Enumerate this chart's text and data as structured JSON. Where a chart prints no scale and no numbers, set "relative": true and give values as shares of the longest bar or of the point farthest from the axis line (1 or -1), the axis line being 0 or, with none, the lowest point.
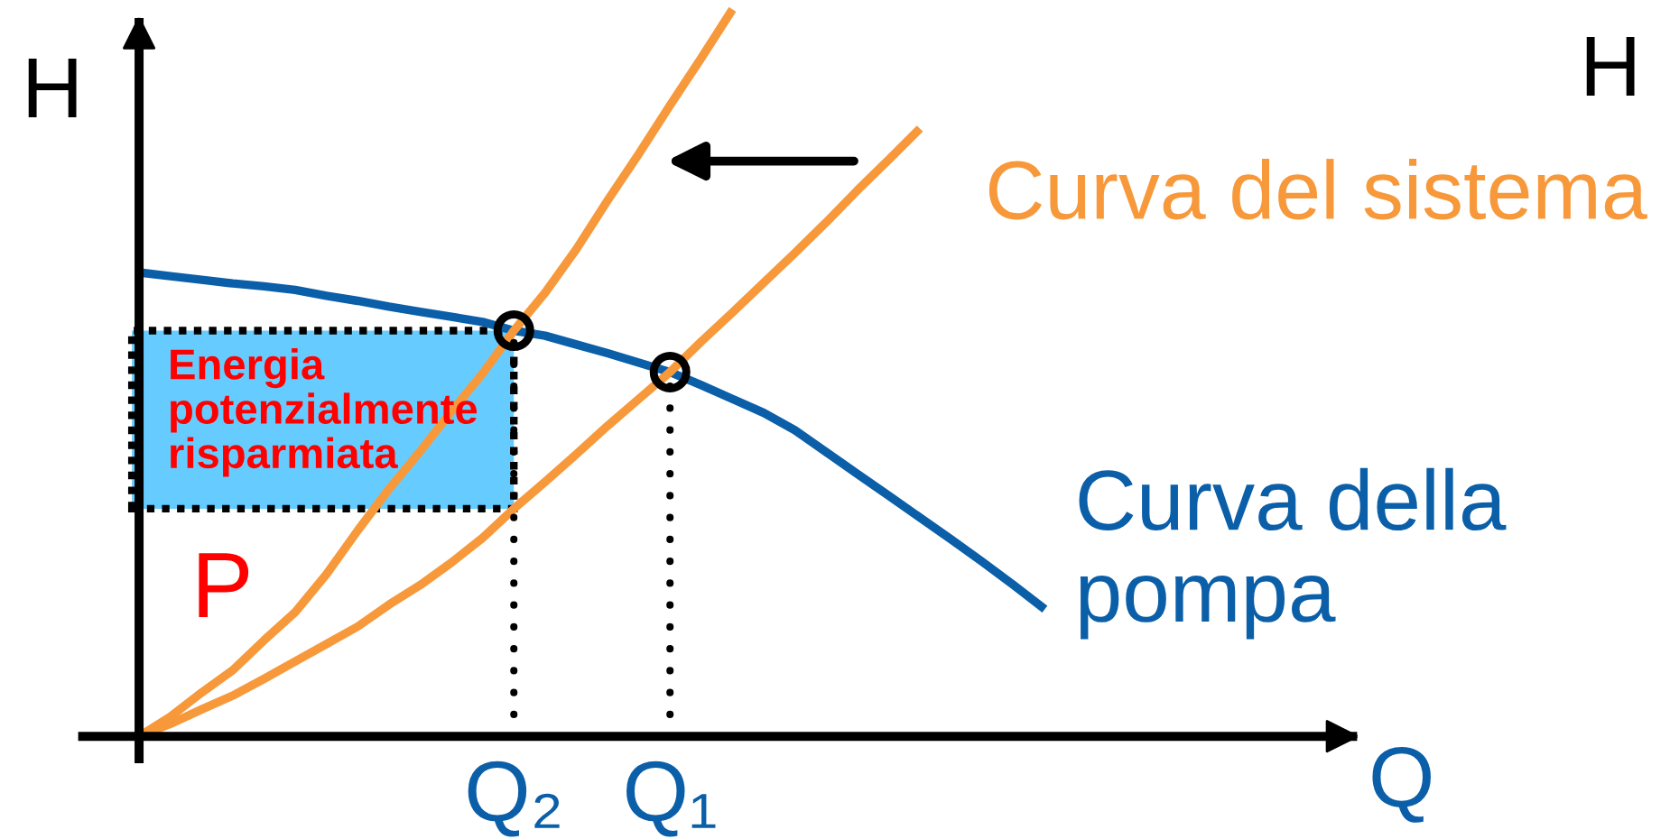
{
  "chart_data": {
    "type": "line",
    "relative": true,
    "tick_labels": "x",
    "xlabel": "Q",
    "ylabel": "H",
    "categories": [
      null,
      null,
      null,
      null,
      null,
      null,
      null,
      null,
      null,
      null,
      null,
      null,
      "Q₂",
      null,
      null,
      null,
      null,
      "Q₁",
      null,
      null,
      null,
      null,
      null,
      null,
      null,
      null,
      null,
      null,
      null,
      null,
      null,
      null,
      null,
      null,
      null,
      null,
      null,
      null,
      null,
      null
    ],
    "series": [
      {
        "name": "Curva della pompa",
        "color": "#0b5fa8",
        "values": [
          0.638,
          0.633,
          0.628,
          0.623,
          0.619,
          0.614,
          0.606,
          0.599,
          0.591,
          0.584,
          0.577,
          0.57,
          0.558,
          0.551,
          0.539,
          0.527,
          0.514,
          0.501,
          0.483,
          0.464,
          0.445,
          0.421,
          0.391,
          0.361,
          0.331,
          0.301,
          0.271,
          0.24,
          0.208,
          0.175,
          null,
          null,
          null,
          null,
          null,
          null,
          null,
          null,
          null,
          null
        ]
      },
      {
        "color": "#f7993b",
        "values": [
          0,
          0.027,
          0.06,
          0.091,
          0.132,
          0.171,
          0.223,
          0.283,
          0.34,
          0.392,
          0.447,
          0.499,
          0.558,
          0.61,
          0.67,
          0.737,
          0.801,
          0.868,
          0.933,
          1,
          null,
          null,
          null,
          null,
          null,
          null,
          null,
          null,
          null,
          null,
          null,
          null,
          null,
          null,
          null,
          null,
          null,
          null,
          null,
          null
        ]
      },
      {
        "name": "Curva del sistema",
        "color": "#f7993b",
        "values": [
          0,
          0.017,
          0.037,
          0.056,
          0.079,
          0.103,
          0.127,
          0.151,
          0.181,
          0.208,
          0.239,
          0.273,
          0.313,
          0.35,
          0.388,
          0.427,
          0.464,
          0.501,
          0.543,
          0.583,
          0.624,
          0.665,
          0.707,
          0.751,
          0.793,
          0.836,
          null,
          null,
          null,
          null,
          null,
          null,
          null,
          null,
          null,
          null,
          null,
          null,
          null,
          null
        ]
      },
      {
        "type": "lollipop",
        "color": "#000000",
        "line_style": "dotted",
        "marker": "circle",
        "values": [
          null,
          null,
          null,
          null,
          null,
          null,
          null,
          null,
          null,
          null,
          null,
          null,
          0.558,
          null,
          null,
          null,
          null,
          0.501,
          null,
          null,
          null,
          null,
          null,
          null,
          null,
          null,
          null,
          null,
          null,
          null,
          null,
          null,
          null,
          null,
          null,
          null,
          null,
          null,
          null,
          null
        ]
      }
    ],
    "annotations": [
      "Energia\npotenzialmente\nrisparmiata",
      "P",
      "H"
    ]
  }
}
